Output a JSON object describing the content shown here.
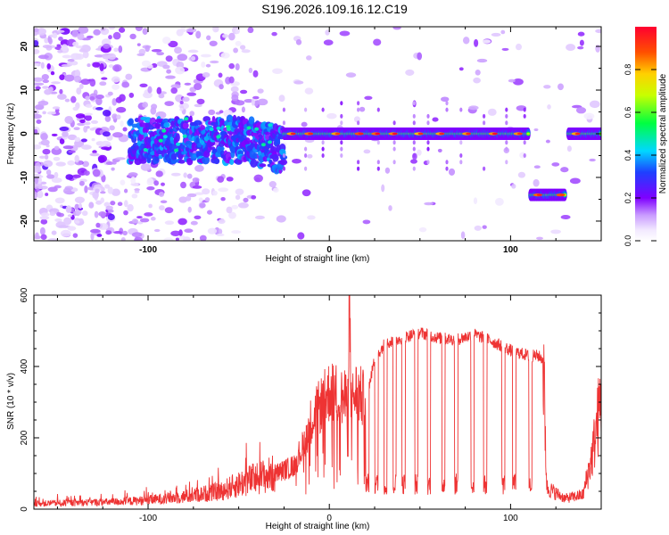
{
  "title": "S196.2026.109.16.12.C19",
  "chart_data": [
    {
      "type": "heatmap",
      "title": "S196.2026.109.16.12.C19",
      "xlabel": "Height of straight line (km)",
      "ylabel": "Frequency (Hz)",
      "xlim": [
        -163,
        150
      ],
      "ylim": [
        -24.5,
        24.5
      ],
      "xticks": [
        -100,
        0,
        100
      ],
      "xtick_labels": [
        "-100",
        "0",
        "100"
      ],
      "yticks": [
        -20,
        -10,
        0,
        10,
        20
      ],
      "ytick_labels": [
        "-20",
        "-10",
        "0",
        "10",
        "20"
      ],
      "colorbar": {
        "label": "Normalized spectral amplitude",
        "range": [
          0,
          1
        ],
        "ticks": [
          0.0,
          0.2,
          0.4,
          0.6,
          0.8
        ],
        "tick_labels": [
          "0.0",
          "0.2",
          "0.4",
          "0.6",
          "0.8"
        ],
        "colormap": "rainbow (violet to red)"
      },
      "ridge_segments": [
        {
          "x_start": -110,
          "x_end": -25,
          "frequency": -1.5,
          "note": "noisy onset band, blue/cyan blobs"
        },
        {
          "x_start": -25,
          "x_end": 110,
          "frequency": 0,
          "note": "strong continuous tone, green/yellow with red peaks"
        },
        {
          "x_start": 111,
          "x_end": 130,
          "frequency": -14,
          "note": "shifted tone segment"
        },
        {
          "x_start": 132,
          "x_end": 150,
          "frequency": 0,
          "note": "tone resumes"
        }
      ]
    },
    {
      "type": "line",
      "xlabel": "Height of straight line (km)",
      "ylabel": "SNR (10 * v/v)",
      "xlim": [
        -163,
        150
      ],
      "ylim": [
        0,
        600
      ],
      "xticks": [
        -100,
        0,
        100
      ],
      "xtick_labels": [
        "-100",
        "0",
        "100"
      ],
      "yticks": [
        0,
        200,
        400,
        600
      ],
      "ytick_labels": [
        "0",
        "200",
        "400",
        "600"
      ],
      "series": [
        {
          "name": "SNR",
          "color": "#ee3333",
          "envelope": {
            "x": [
              -163,
              -140,
              -120,
              -100,
              -80,
              -60,
              -45,
              -30,
              -20,
              -15,
              -10,
              -5,
              0,
              5,
              10,
              11,
              12,
              15,
              20,
              25,
              30,
              40,
              50,
              60,
              70,
              80,
              90,
              100,
              110,
              115,
              118,
              120,
              130,
              140,
              145,
              150
            ],
            "y": [
              15,
              18,
              20,
              25,
              35,
              50,
              80,
              100,
              120,
              170,
              250,
              290,
              330,
              320,
              300,
              610,
              300,
              330,
              300,
              420,
              460,
              480,
              495,
              480,
              475,
              490,
              470,
              445,
              430,
              430,
              420,
              60,
              30,
              40,
              150,
              310
            ]
          },
          "dropouts_x": [
            21,
            26,
            31,
            36,
            41,
            48,
            55,
            63,
            70,
            79,
            86,
            96,
            102,
            111
          ]
        }
      ]
    }
  ],
  "colors": {
    "snr_line": "#ee3333",
    "axis": "#000000",
    "background": "#ffffff"
  }
}
